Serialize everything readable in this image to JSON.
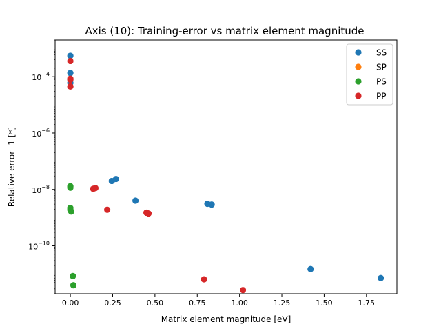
{
  "chart_data": {
    "type": "scatter",
    "title": "Axis (10): Training-error vs matrix element magnitude",
    "xlabel": "Matrix element magnitude [eV]",
    "ylabel": "Relative error -1 [*]",
    "xlim": [
      -0.09,
      1.93
    ],
    "ylim": [
      2e-12,
      0.002
    ],
    "yscale": "log",
    "xticks": [
      0.0,
      0.25,
      0.5,
      0.75,
      1.0,
      1.25,
      1.5,
      1.75
    ],
    "xticklabels": [
      "0.00",
      "0.25",
      "0.50",
      "0.75",
      "1.00",
      "1.25",
      "1.50",
      "1.75"
    ],
    "yticks": [
      1e-10,
      1e-08,
      1e-06,
      0.0001
    ],
    "ytick_base": "10",
    "ytick_exponents": [
      "−10",
      "−8",
      "−6",
      "−4"
    ],
    "grid": false,
    "legend_position": "top-right",
    "series": [
      {
        "name": "SS",
        "color": "#1f77b4",
        "points": [
          [
            0.0,
            0.00055
          ],
          [
            0.0,
            0.000135
          ],
          [
            0.0,
            6e-05
          ],
          [
            0.245,
            2e-08
          ],
          [
            0.27,
            2.35e-08
          ],
          [
            0.385,
            4e-09
          ],
          [
            0.81,
            3.1e-09
          ],
          [
            0.835,
            2.9e-09
          ],
          [
            1.42,
            1.5e-11
          ],
          [
            1.835,
            7.2e-12
          ]
        ]
      },
      {
        "name": "SP",
        "color": "#ff7f0e",
        "points": []
      },
      {
        "name": "PS",
        "color": "#2ca02c",
        "points": [
          [
            0.0,
            1.3e-08
          ],
          [
            0.0,
            1.15e-08
          ],
          [
            0.0,
            2.2e-09
          ],
          [
            0.0,
            1.9e-09
          ],
          [
            0.005,
            1.65e-09
          ],
          [
            0.015,
            8.5e-12
          ],
          [
            0.018,
            4e-12
          ]
        ]
      },
      {
        "name": "PP",
        "color": "#d62728",
        "points": [
          [
            0.0,
            0.00036
          ],
          [
            0.0,
            8.5e-05
          ],
          [
            0.0,
            7.8e-05
          ],
          [
            0.0,
            4.5e-05
          ],
          [
            0.135,
            1.05e-08
          ],
          [
            0.148,
            1.12e-08
          ],
          [
            0.218,
            1.9e-09
          ],
          [
            0.45,
            1.5e-09
          ],
          [
            0.462,
            1.4e-09
          ],
          [
            0.79,
            6.5e-12
          ],
          [
            1.02,
            2.7e-12
          ]
        ]
      }
    ]
  }
}
